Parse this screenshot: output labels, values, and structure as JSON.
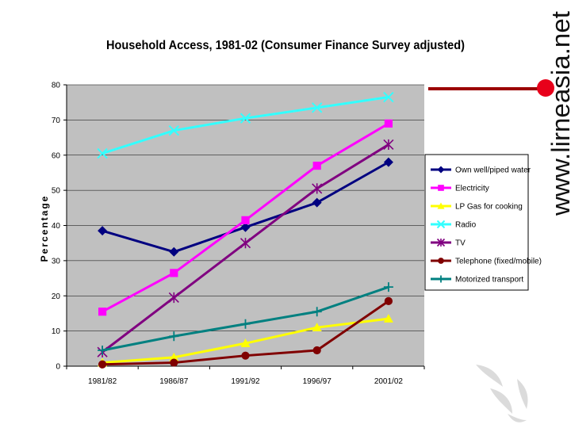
{
  "chart_data": {
    "type": "line",
    "title": "Household Access, 1981-02 (Consumer Finance Survey adjusted)",
    "xlabel": "",
    "ylabel": "Percentage",
    "ylim": [
      0,
      80
    ],
    "yticks": [
      "0",
      "10",
      "20",
      "30",
      "40",
      "50",
      "60",
      "70",
      "80"
    ],
    "categories": [
      "1981/82",
      "1986/87",
      "1991/92",
      "1996/97",
      "2001/02"
    ],
    "grid": true,
    "legend_position": "right",
    "series": [
      {
        "name": "Own well/piped water",
        "color": "#000080",
        "marker": "diamond",
        "values": [
          38.5,
          32.5,
          39.5,
          46.5,
          58
        ]
      },
      {
        "name": "Electricity",
        "color": "#ff00ff",
        "marker": "square",
        "values": [
          15.5,
          26.5,
          41.5,
          57,
          69
        ]
      },
      {
        "name": "LP Gas for cooking",
        "color": "#ffff00",
        "marker": "triangle",
        "values": [
          1,
          2.5,
          6.5,
          11,
          13.5
        ]
      },
      {
        "name": "Radio",
        "color": "#33ffff",
        "marker": "x",
        "values": [
          60.5,
          67,
          70.5,
          73.5,
          76.5
        ]
      },
      {
        "name": "TV",
        "color": "#800080",
        "marker": "star",
        "values": [
          4,
          19.5,
          35,
          50.5,
          63
        ]
      },
      {
        "name": "Telephone (fixed/mobile)",
        "color": "#800000",
        "marker": "circle",
        "values": [
          0.5,
          1,
          3,
          4.5,
          18.5
        ]
      },
      {
        "name": "Motorized transport",
        "color": "#008080",
        "marker": "plus",
        "values": [
          4.5,
          8.5,
          12,
          15.5,
          22.5
        ]
      }
    ]
  },
  "watermark": {
    "text": "www.lirneasia.net"
  },
  "decor": {
    "accent_color": "#c00000"
  }
}
